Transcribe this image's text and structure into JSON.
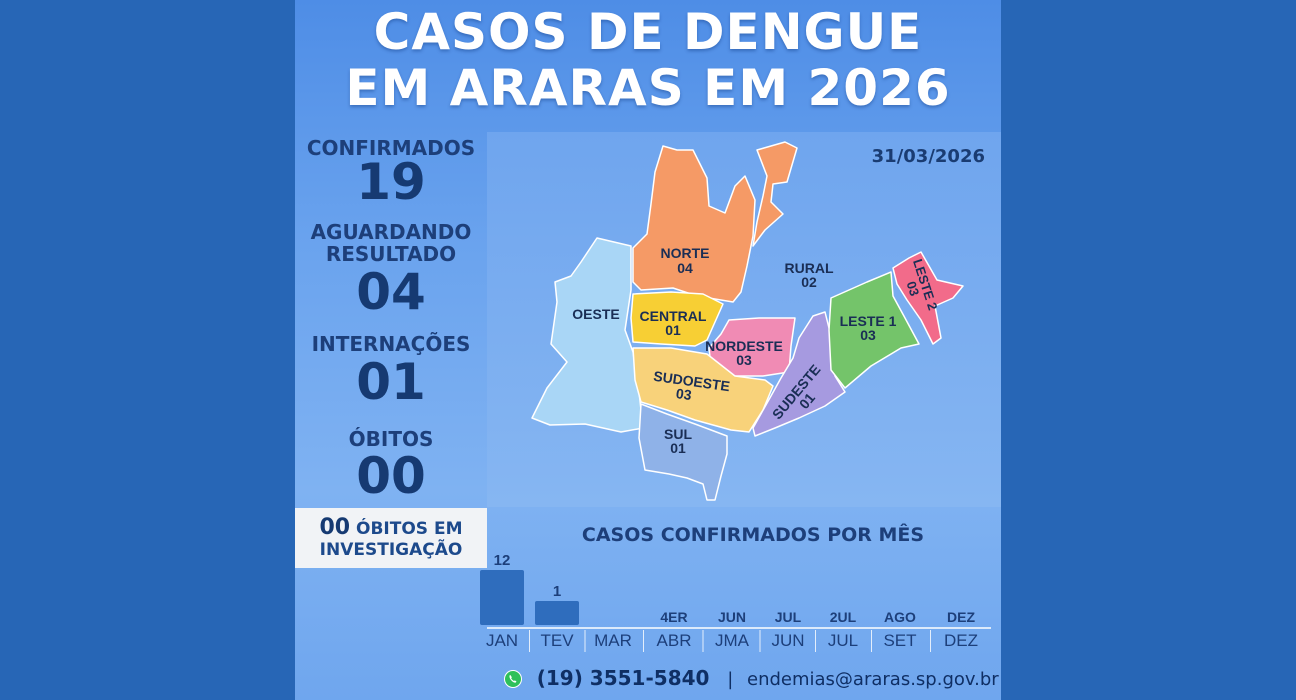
{
  "title": {
    "line1": "CASOS DE DENGUE",
    "line2": "EM ARARAS EM 2026"
  },
  "stats": {
    "confirmados": {
      "label": "CONFIRMADOS",
      "value": "19"
    },
    "aguardando": {
      "label1": "AGUARDANDO",
      "label2": "RESULTADO",
      "value": "04"
    },
    "internacoes": {
      "label": "INTERNAÇÕES",
      "value": "01"
    },
    "obitos": {
      "label": "ÓBITOS",
      "value": "00"
    },
    "investigacao": {
      "value": "00",
      "label1": " ÓBITOS EM",
      "label2": "INVESTIGAÇÃO"
    }
  },
  "date": "31/03/2026",
  "regions": [
    {
      "name": "NORTE",
      "value": "04",
      "color": "#f59a66"
    },
    {
      "name": "RURAL",
      "value": "02",
      "color": "#f59a66"
    },
    {
      "name": "OESTE",
      "value": "",
      "color": "#a9d6f6"
    },
    {
      "name": "CENTRAL",
      "value": "01",
      "color": "#f7cf34"
    },
    {
      "name": "NORDESTE",
      "value": "03",
      "color": "#f08bb4"
    },
    {
      "name": "SUDOESTE",
      "value": "03",
      "color": "#f8d27a"
    },
    {
      "name": "SUDESTE",
      "value": "01",
      "color": "#a69ae0"
    },
    {
      "name": "SUL",
      "value": "01",
      "color": "#8fb2e8"
    },
    {
      "name": "LESTE 1",
      "value": "03",
      "color": "#74c46a"
    },
    {
      "name": "LESTE 2",
      "value": "03",
      "color": "#f26b8a"
    }
  ],
  "chart_data": {
    "type": "bar",
    "title": "CASOS CONFIRMADOS POR MÊS",
    "categories": [
      "JAN",
      "TEV",
      "MAR",
      "ABR",
      "JMA",
      "JUN",
      "JUL",
      "SET",
      "DEZ"
    ],
    "values": [
      12,
      1,
      null,
      null,
      null,
      null,
      null,
      null,
      null
    ],
    "value_labels": [
      "12",
      "1",
      "",
      "4ER",
      "JUN",
      "JUL",
      "2UL",
      "AGO",
      "DEZ"
    ],
    "bar_color": "#2f6dbd"
  },
  "footer": {
    "icon": "whatsapp-icon",
    "phone": "(19) 3551-5840",
    "separator": "|",
    "email": "endemias@araras.sp.gov.br"
  }
}
